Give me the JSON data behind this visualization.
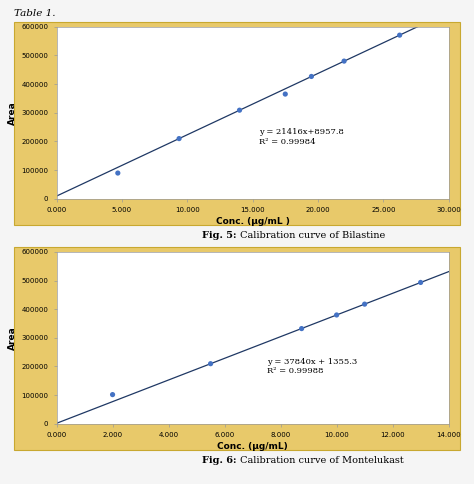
{
  "fig5": {
    "x_data": [
      4.688,
      9.375,
      14.0,
      17.5,
      19.5,
      22.0,
      26.25
    ],
    "y_data": [
      89400,
      209700,
      308978,
      365238,
      426770,
      480410,
      571068
    ],
    "slope": 21416,
    "intercept": 8957.8,
    "equation": "y = 21416x+8957.8",
    "r2_text": "R² = 0.99984",
    "xlabel": "Conc. (μg/mL )",
    "ylabel": "Area",
    "xlim_data": [
      0,
      30
    ],
    "ylim": [
      0,
      600000
    ],
    "xticks": [
      0,
      5,
      10,
      15,
      20,
      25,
      30
    ],
    "xtick_labels": [
      "0.000",
      "5.000",
      "10.000",
      "15.000",
      "20.000",
      "25.000",
      "30.000"
    ],
    "yticks": [
      0,
      100000,
      200000,
      300000,
      400000,
      500000,
      600000
    ],
    "ytick_labels": [
      "0",
      "100000",
      "200000",
      "300000",
      "400000",
      "500000",
      "600000"
    ],
    "caption_bold": "Fig. 5:",
    "caption_normal": " Calibration curve of Bilastine",
    "ann_x": 15.5,
    "ann_y": 185000,
    "bg_color": "#E8C96A",
    "plot_bg": "#FFFFFF",
    "line_color": "#1F3864",
    "dot_color": "#4472C4"
  },
  "fig6": {
    "x_data": [
      2.0,
      5.5,
      8.75,
      10.0,
      11.0,
      13.0
    ],
    "y_data": [
      101635,
      209575,
      332225,
      379755,
      417595,
      493375
    ],
    "slope": 37840,
    "intercept": 1355.3,
    "equation": "y = 37840x + 1355.3",
    "r2_text": "R² = 0.99988",
    "xlabel": "Conc. (μg/mL)",
    "ylabel": "Area",
    "xlim_data": [
      0,
      14
    ],
    "ylim": [
      0,
      600000
    ],
    "xticks": [
      0,
      2,
      4,
      6,
      8,
      10,
      12,
      14
    ],
    "xtick_labels": [
      "0.000",
      "2.000",
      "4.000",
      "6.000",
      "8.000",
      "10.000",
      "12.000",
      "14.000"
    ],
    "yticks": [
      0,
      100000,
      200000,
      300000,
      400000,
      500000,
      600000
    ],
    "ytick_labels": [
      "0",
      "100000",
      "200000",
      "300000",
      "400000",
      "500000",
      "600000"
    ],
    "caption_bold": "Fig. 6:",
    "caption_normal": " Calibration curve of Montelukast",
    "ann_x": 7.5,
    "ann_y": 170000,
    "bg_color": "#E8C96A",
    "plot_bg": "#FFFFFF",
    "line_color": "#1F3864",
    "dot_color": "#4472C4"
  },
  "title": "Table 1.",
  "outer_bg": "#F5F5F5",
  "fig_width": 4.74,
  "fig_height": 4.84
}
